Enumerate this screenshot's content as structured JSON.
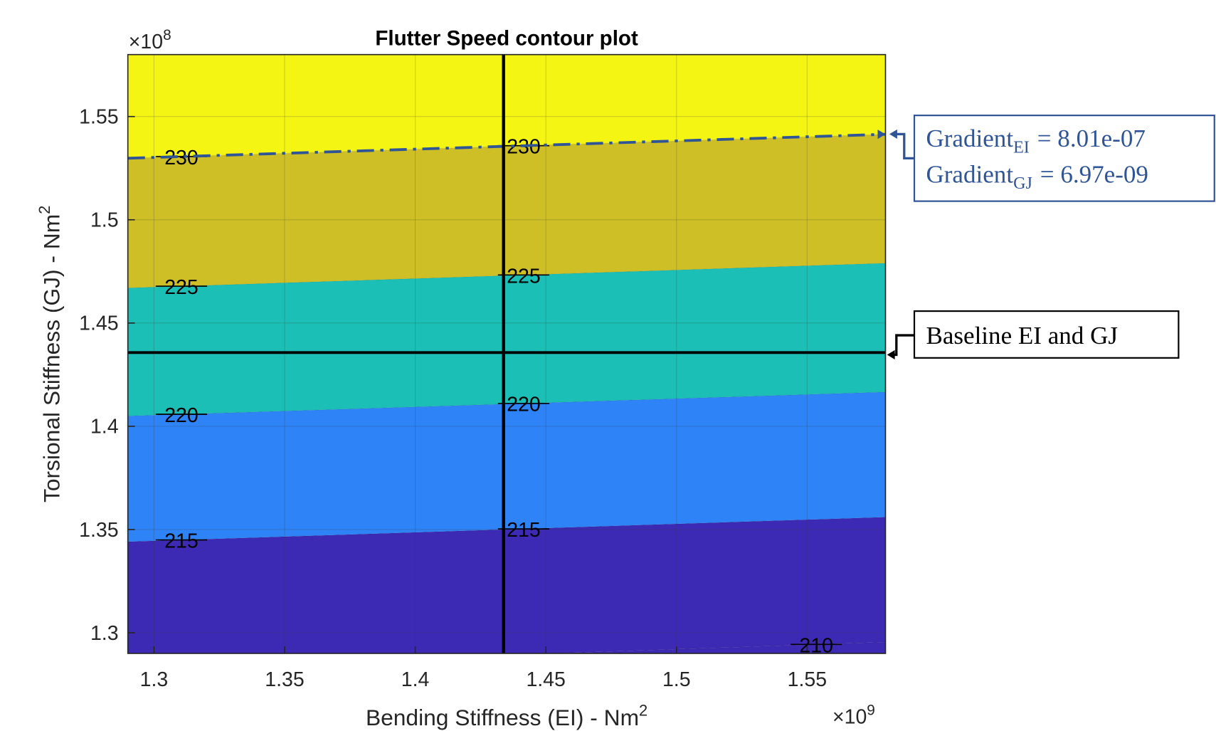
{
  "chart_data": {
    "type": "contour",
    "title": "Flutter Speed contour plot",
    "xlabel": {
      "text": "Bending Stiffness (EI) - Nm",
      "superscript": "2"
    },
    "ylabel": {
      "text": "Torsional Stiffness (GJ) - Nm",
      "superscript": "2"
    },
    "x_multiplier": {
      "text": "×10",
      "exponent": "9"
    },
    "y_multiplier": {
      "text": "×10",
      "exponent": "8"
    },
    "xlim": [
      1.29,
      1.58
    ],
    "ylim": [
      1.29,
      1.58
    ],
    "xticks": [
      1.3,
      1.35,
      1.4,
      1.45,
      1.5,
      1.55
    ],
    "yticks": [
      1.3,
      1.35,
      1.4,
      1.45,
      1.5,
      1.55
    ],
    "grid": true,
    "contours": [
      {
        "level": 210,
        "x": [
          1.29,
          1.58
        ],
        "y": [
          1.283,
          1.2955
        ],
        "label_x": [
          1.5535
        ]
      },
      {
        "level": 215,
        "x": [
          1.29,
          1.58
        ],
        "y": [
          1.3441,
          1.356
        ],
        "label_x": [
          1.3105,
          1.4415
        ]
      },
      {
        "level": 220,
        "x": [
          1.29,
          1.58
        ],
        "y": [
          1.405,
          1.4166
        ],
        "label_x": [
          1.3105,
          1.4415
        ]
      },
      {
        "level": 225,
        "x": [
          1.29,
          1.58
        ],
        "y": [
          1.467,
          1.479
        ],
        "label_x": [
          1.3105,
          1.4415
        ]
      },
      {
        "level": 230,
        "x": [
          1.29,
          1.58
        ],
        "y": [
          1.5298,
          1.5414
        ],
        "label_x": [
          1.3105,
          1.4415
        ]
      }
    ],
    "fills": [
      "#3d2ab4",
      "#3d2ab4",
      "#2e83f6",
      "#1bbfb5",
      "#cfbf27",
      "#f5f514"
    ],
    "baseline": {
      "x": 1.4338,
      "y": 1.4357,
      "label": "Baseline EI and GJ"
    },
    "gradient_annotation": {
      "color": "#2f5597",
      "lines": [
        {
          "text": "Gradient",
          "subscript": "EI",
          "value_text": "= 8.01e-07"
        },
        {
          "text": "Gradient",
          "subscript": "GJ",
          "value_text": "= 6.97e-09"
        }
      ]
    }
  }
}
